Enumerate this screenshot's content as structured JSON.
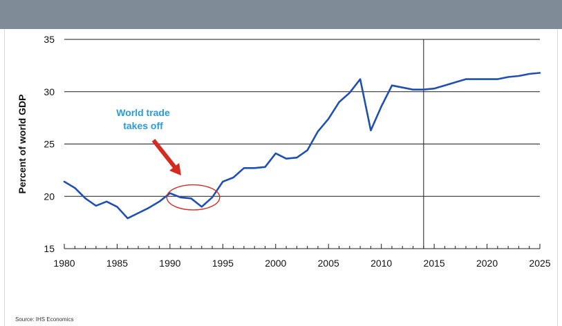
{
  "chart_data": {
    "type": "line",
    "ylabel": "Percent of world GDP",
    "xlabel": "",
    "ylim": [
      15,
      35
    ],
    "xlim": [
      1980,
      2025
    ],
    "yticks": [
      15,
      20,
      25,
      30,
      35
    ],
    "xticks": [
      1980,
      1985,
      1990,
      1995,
      2000,
      2005,
      2010,
      2015,
      2020,
      2025
    ],
    "grid": "horizontal",
    "vertical_marker_x": 2014,
    "annotation": {
      "lines": [
        "World trade",
        "takes off"
      ],
      "color": "#2a9bd6",
      "arrow_color": "#d42a1f",
      "circle_x": [
        1989.7,
        1994.7
      ],
      "circle_y": [
        18.7,
        21.1
      ]
    },
    "series": [
      {
        "color": "#1f4fb0",
        "x": [
          1980,
          1981,
          1982,
          1983,
          1984,
          1985,
          1986,
          1987,
          1988,
          1989,
          1990,
          1991,
          1992,
          1993,
          1994,
          1995,
          1996,
          1997,
          1998,
          1999,
          2000,
          2001,
          2002,
          2003,
          2004,
          2005,
          2006,
          2007,
          2008,
          2009,
          2010,
          2011,
          2012,
          2013,
          2014,
          2015,
          2016,
          2017,
          2018,
          2019,
          2020,
          2021,
          2022,
          2023,
          2024,
          2025
        ],
        "y": [
          21.4,
          20.8,
          19.8,
          19.1,
          19.5,
          19.0,
          17.9,
          18.4,
          18.9,
          19.5,
          20.3,
          19.9,
          19.8,
          19.0,
          19.9,
          21.4,
          21.8,
          22.7,
          22.7,
          22.8,
          24.1,
          23.6,
          23.7,
          24.4,
          26.2,
          27.4,
          29.0,
          29.9,
          31.2,
          26.3,
          28.6,
          30.6,
          30.4,
          30.2,
          30.2,
          30.3,
          30.6,
          30.9,
          31.2,
          31.2,
          31.2,
          31.2,
          31.4,
          31.5,
          31.7,
          31.8
        ]
      }
    ]
  },
  "source": "Source: IHS Economics"
}
